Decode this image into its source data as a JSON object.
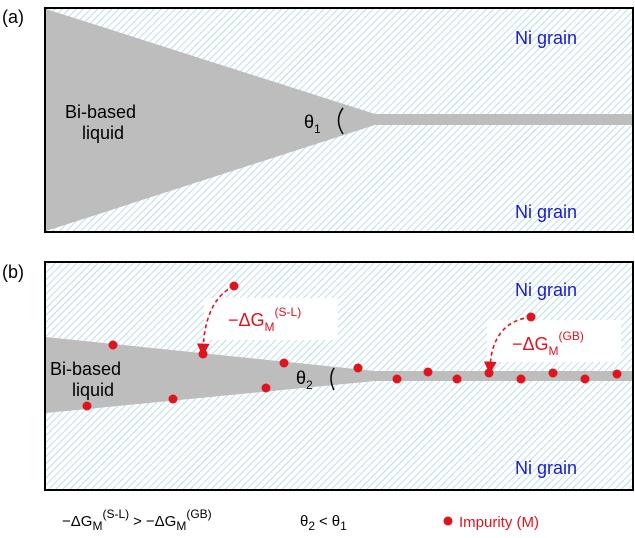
{
  "panel_a": {
    "label": "(a)",
    "grain_top": "Ni grain",
    "grain_bottom": "Ni grain",
    "liquid": [
      "Bi-based",
      "liquid"
    ],
    "angle": {
      "base": "θ",
      "sub": "1"
    }
  },
  "panel_b": {
    "label": "(b)",
    "grain_top": "Ni grain",
    "grain_bottom": "Ni grain",
    "liquid": [
      "Bi-based",
      "liquid"
    ],
    "angle": {
      "base": "θ",
      "sub": "2"
    },
    "energy_sl": {
      "base": "−ΔG",
      "sub": "M",
      "sup": "(S-L)"
    },
    "energy_gb": {
      "base": "−ΔG",
      "sub": "M",
      "sup": "(GB)"
    }
  },
  "legend": {
    "energy": {
      "lhs": {
        "base": "−ΔG",
        "sub": "M",
        "sup": "(S-L)"
      },
      "op": ">",
      "rhs": {
        "base": "−ΔG",
        "sub": "M",
        "sup": "(GB)"
      }
    },
    "angle": {
      "lhs": {
        "base": "θ",
        "sub": "2"
      },
      "op": "<",
      "rhs": {
        "base": "θ",
        "sub": "1"
      }
    },
    "impurity": "Impurity (M)"
  }
}
